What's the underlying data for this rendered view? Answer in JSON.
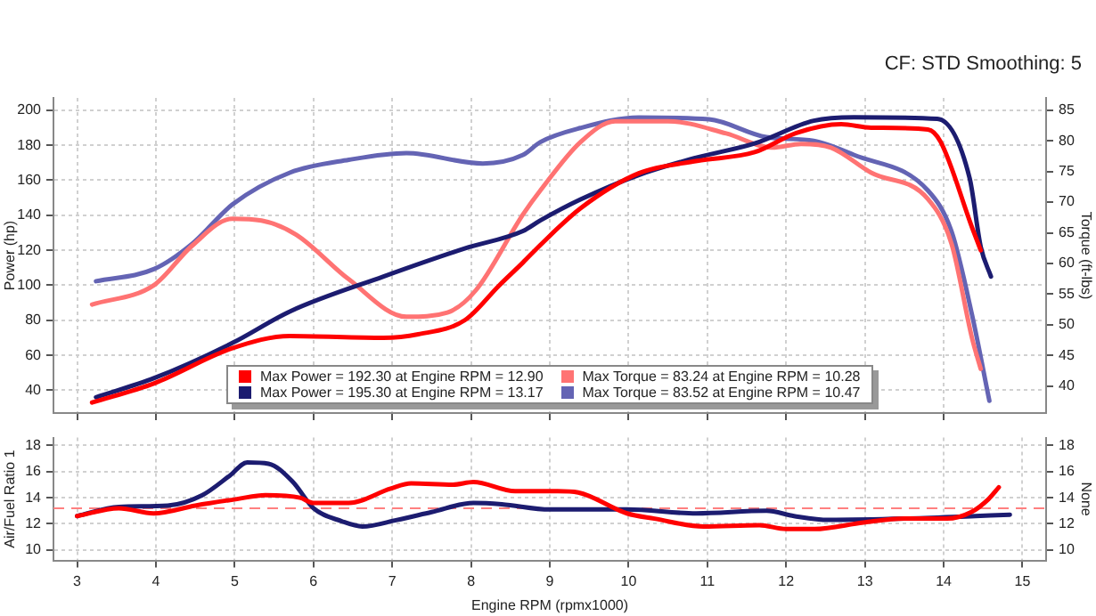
{
  "chart_data": [
    {
      "type": "line",
      "annotations": [
        "CF: STD Smoothing: 5"
      ],
      "ylabel": "Power (hp)",
      "y2label": "Torque (ft-lbs)",
      "xlim": [
        2.7,
        15.3
      ],
      "xticks": [
        3,
        4,
        5,
        6,
        7,
        8,
        9,
        10,
        11,
        12,
        13,
        14
      ],
      "ylim": [
        27,
        207
      ],
      "yticks": [
        40,
        60,
        80,
        100,
        120,
        140,
        160,
        180,
        200
      ],
      "y2lim": [
        35.6,
        87
      ],
      "y2ticks": [
        40,
        45,
        50,
        55,
        60,
        65,
        70,
        75,
        80,
        85
      ],
      "tick_labels": "y",
      "grid": true,
      "legend": "bottom",
      "marker": "none",
      "line_style": "solid",
      "series": [
        {
          "name": "Max Power = 192.30 at Engine RPM = 12.90",
          "color": "#ff0000",
          "x": [
            3.19,
            3.98,
            4.97,
            5.7,
            6.89,
            7.33,
            7.92,
            8.36,
            8.66,
            8.88,
            9.39,
            10.13,
            10.87,
            11.6,
            12.13,
            12.7,
            13.08,
            13.8,
            13.96,
            14.36,
            14.47
          ],
          "values": [
            33,
            44,
            64,
            71,
            70,
            72,
            80,
            100,
            113,
            123,
            144,
            164,
            171,
            176,
            187,
            192,
            190,
            189,
            182,
            133,
            120
          ]
        },
        {
          "name": "Max Power = 195.30 at Engine RPM = 13.17",
          "color": "#1c1c70",
          "x": [
            3.24,
            3.98,
            4.97,
            5.7,
            6.89,
            7.92,
            8.66,
            8.88,
            9.39,
            10.13,
            10.87,
            11.6,
            12.35,
            12.86,
            13.92,
            14.33,
            14.47,
            14.6
          ],
          "values": [
            36,
            47,
            67,
            85,
            105,
            121,
            131,
            137,
            149,
            163,
            173,
            181,
            194,
            196,
            195,
            161,
            122,
            105
          ]
        },
        {
          "name": "Max Torque = 83.24 at Engine RPM = 10.28",
          "color": "#ff7373",
          "axis": "y2",
          "x": [
            3.19,
            3.98,
            4.46,
            4.97,
            5.34,
            5.78,
            6.45,
            7.18,
            7.7,
            8.06,
            8.66,
            8.88,
            9.39,
            9.83,
            10.5,
            11.24,
            11.82,
            12.19,
            12.57,
            13.08,
            13.8,
            14.1,
            14.36,
            14.47
          ],
          "values": [
            53.3,
            56.5,
            62.9,
            67.3,
            67,
            64.7,
            57.4,
            51.3,
            52,
            55.6,
            68,
            71.9,
            79.8,
            83.2,
            83.2,
            81.2,
            78.9,
            79.5,
            78.9,
            74.8,
            70.5,
            63.2,
            47.8,
            42.8
          ]
        },
        {
          "name": "Max Torque = 83.52 at Engine RPM = 10.47",
          "color": "#6464b4",
          "axis": "y2",
          "x": [
            3.24,
            3.98,
            4.46,
            4.97,
            5.7,
            6.45,
            7.18,
            8.15,
            8.66,
            8.88,
            9.39,
            10.13,
            11.02,
            11.75,
            12.35,
            12.86,
            13.8,
            14.1,
            14.36,
            14.58
          ],
          "values": [
            57.1,
            59.1,
            63.2,
            69.6,
            74.8,
            76.9,
            78,
            76.3,
            77.7,
            79.8,
            82.1,
            83.8,
            83.5,
            80.6,
            80,
            77.7,
            71.9,
            65.2,
            51.6,
            37.6
          ]
        }
      ]
    },
    {
      "type": "line",
      "xlabel": "Engine RPM (rpmx1000)",
      "ylabel": "Air/Fuel Ratio 1",
      "y2label": "None",
      "xlim": [
        2.7,
        15.3
      ],
      "xticks": [
        3,
        4,
        5,
        6,
        7,
        8,
        9,
        10,
        11,
        12,
        13,
        14,
        15
      ],
      "ylim": [
        9.2,
        18.6
      ],
      "yticks": [
        10,
        12,
        14,
        16,
        18
      ],
      "y2lim": [
        9.2,
        18.6
      ],
      "y2ticks": [
        10,
        12,
        14,
        16,
        18
      ],
      "grid": true,
      "marker": "none",
      "line_style": "solid",
      "ref_lines": [
        {
          "axis": "y",
          "value": 13.2,
          "color": "#ff8080",
          "line_style": "dashed"
        }
      ],
      "series": [
        {
          "color": "#ff0000",
          "x": [
            3.0,
            3.53,
            3.97,
            4.5,
            5.03,
            5.39,
            5.83,
            6.0,
            6.45,
            6.98,
            7.24,
            7.77,
            8.03,
            8.56,
            9.1,
            9.36,
            9.98,
            10.33,
            10.95,
            11.66,
            12.0,
            12.36,
            12.98,
            13.5,
            14.04,
            14.35,
            14.57,
            14.7
          ],
          "values": [
            12.6,
            13.2,
            12.8,
            13.4,
            13.9,
            14.2,
            14.0,
            13.6,
            13.6,
            14.7,
            15.1,
            15.0,
            15.2,
            14.5,
            14.5,
            14.4,
            12.8,
            12.4,
            11.8,
            11.9,
            11.6,
            11.6,
            12.1,
            12.4,
            12.4,
            12.9,
            13.9,
            14.8
          ]
        },
        {
          "color": "#1c1c70",
          "x": [
            3.0,
            3.53,
            4.15,
            4.59,
            4.94,
            5.16,
            5.43,
            5.74,
            6.0,
            6.36,
            6.62,
            7.06,
            7.5,
            8.03,
            8.39,
            9.0,
            9.98,
            10.86,
            11.75,
            12.1,
            12.54,
            13.51,
            14.4,
            14.84
          ],
          "values": [
            12.6,
            13.3,
            13.4,
            14.2,
            15.7,
            16.7,
            16.6,
            15.2,
            13.2,
            12.2,
            11.8,
            12.3,
            12.9,
            13.6,
            13.5,
            13.1,
            13.1,
            12.8,
            13.0,
            12.6,
            12.3,
            12.4,
            12.6,
            12.7
          ]
        }
      ]
    }
  ]
}
